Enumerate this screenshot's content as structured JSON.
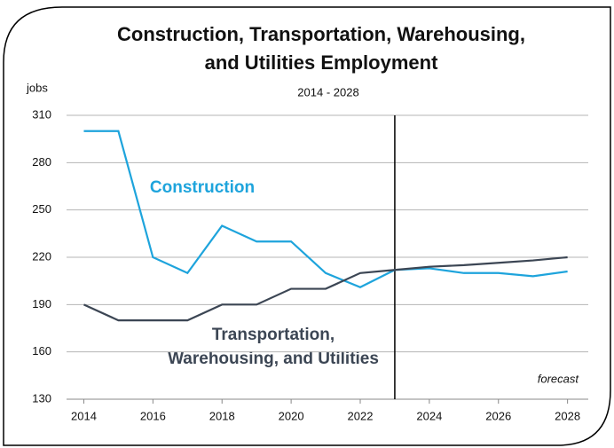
{
  "chart_data": {
    "type": "line",
    "title": [
      "Construction, Transportation, Warehousing,",
      "and Utilities Employment"
    ],
    "subtitle": "2014 - 2028",
    "y_label": "jobs",
    "x": [
      2014,
      2015,
      2016,
      2017,
      2018,
      2019,
      2020,
      2021,
      2022,
      2023,
      2024,
      2025,
      2026,
      2027,
      2028
    ],
    "series": [
      {
        "name": "Construction",
        "color": "#1ea4dc",
        "values": [
          300,
          300,
          220,
          210,
          240,
          230,
          230,
          210,
          201,
          212,
          213,
          210,
          210,
          208,
          211
        ]
      },
      {
        "name": "Transportation, Warehousing, and Utilities",
        "color": "#3c4654",
        "values": [
          190,
          180,
          180,
          180,
          190,
          190,
          200,
          200,
          210,
          212,
          214,
          215,
          216.5,
          218,
          220
        ]
      }
    ],
    "annotations": [
      "Construction",
      "Transportation,",
      "Warehousing, and Utilities",
      "forecast"
    ],
    "forecast_start": 2023,
    "xlim": [
      2013.5,
      2028.6
    ],
    "xticks": [
      2014,
      2016,
      2018,
      2020,
      2022,
      2024,
      2026,
      2028
    ],
    "ylim": [
      130,
      310
    ],
    "yticks": [
      130,
      160,
      190,
      220,
      250,
      280,
      310
    ],
    "grid": true
  }
}
